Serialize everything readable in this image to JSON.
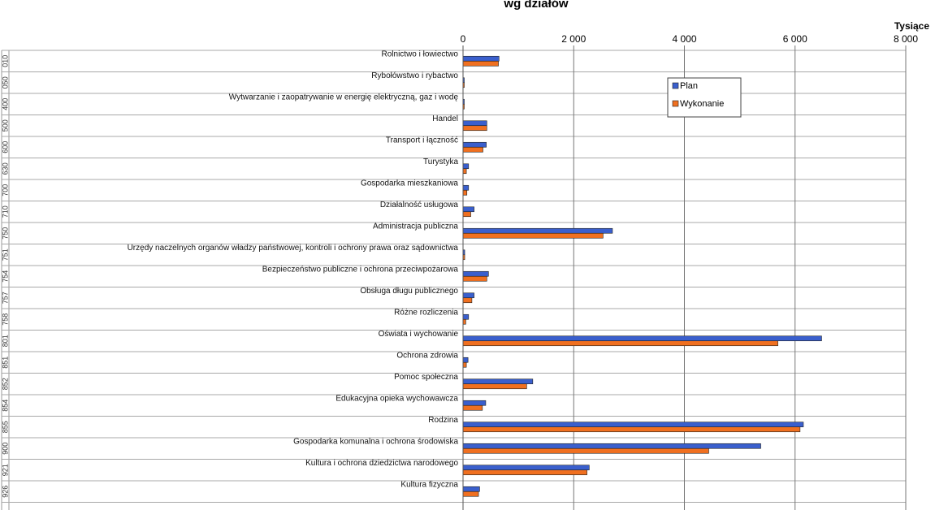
{
  "chart_data": {
    "type": "bar",
    "orientation": "horizontal",
    "title": "wg działów",
    "unit_label": "Tysiące",
    "xlim": [
      0,
      8000
    ],
    "x_ticks": [
      0,
      2000,
      4000,
      6000,
      8000
    ],
    "x_tick_labels": [
      "0",
      "2 000",
      "4 000",
      "6 000",
      "8 000"
    ],
    "grid": true,
    "legend_position": "top-right",
    "codes": [
      "010",
      "050",
      "400",
      "500",
      "600",
      "630",
      "700",
      "710",
      "750",
      "751",
      "754",
      "757",
      "758",
      "801",
      "851",
      "852",
      "854",
      "855",
      "900",
      "921",
      "926"
    ],
    "categories": [
      "Rolnictwo i łowiectwo",
      "Rybołówstwo i rybactwo",
      "Wytwarzanie i zaopatrywanie w energię elektryczną, gaz i wodę",
      "Handel",
      "Transport i łączność",
      "Turystyka",
      "Gospodarka mieszkaniowa",
      "Działalność usługowa",
      "Administracja publiczna",
      "Urzędy naczelnych organów władzy państwowej, kontroli i ochrony prawa oraz sądownictwa",
      "Bezpieczeństwo publiczne i ochrona przeciwpożarowa",
      "Obsługa długu publicznego",
      "Różne rozliczenia",
      "Oświata i wychowanie",
      "Ochrona zdrowia",
      "Pomoc społeczna",
      "Edukacyjna opieka wychowawcza",
      "Rodzina",
      "Gospodarka komunalna i ochrona środowiska",
      "Kultura i ochrona dziedzictwa narodowego",
      "Kultura fizyczna"
    ],
    "series": [
      {
        "name": "Plan",
        "color": "#3a5fcd",
        "values": [
          650,
          20,
          20,
          430,
          420,
          100,
          100,
          200,
          2700,
          30,
          460,
          200,
          100,
          6480,
          90,
          1260,
          410,
          6150,
          5380,
          2280,
          300
        ]
      },
      {
        "name": "Wykonanie",
        "color": "#f07020",
        "values": [
          640,
          20,
          15,
          430,
          360,
          60,
          70,
          140,
          2530,
          30,
          430,
          160,
          50,
          5690,
          60,
          1150,
          350,
          6090,
          4440,
          2240,
          280
        ]
      }
    ]
  }
}
